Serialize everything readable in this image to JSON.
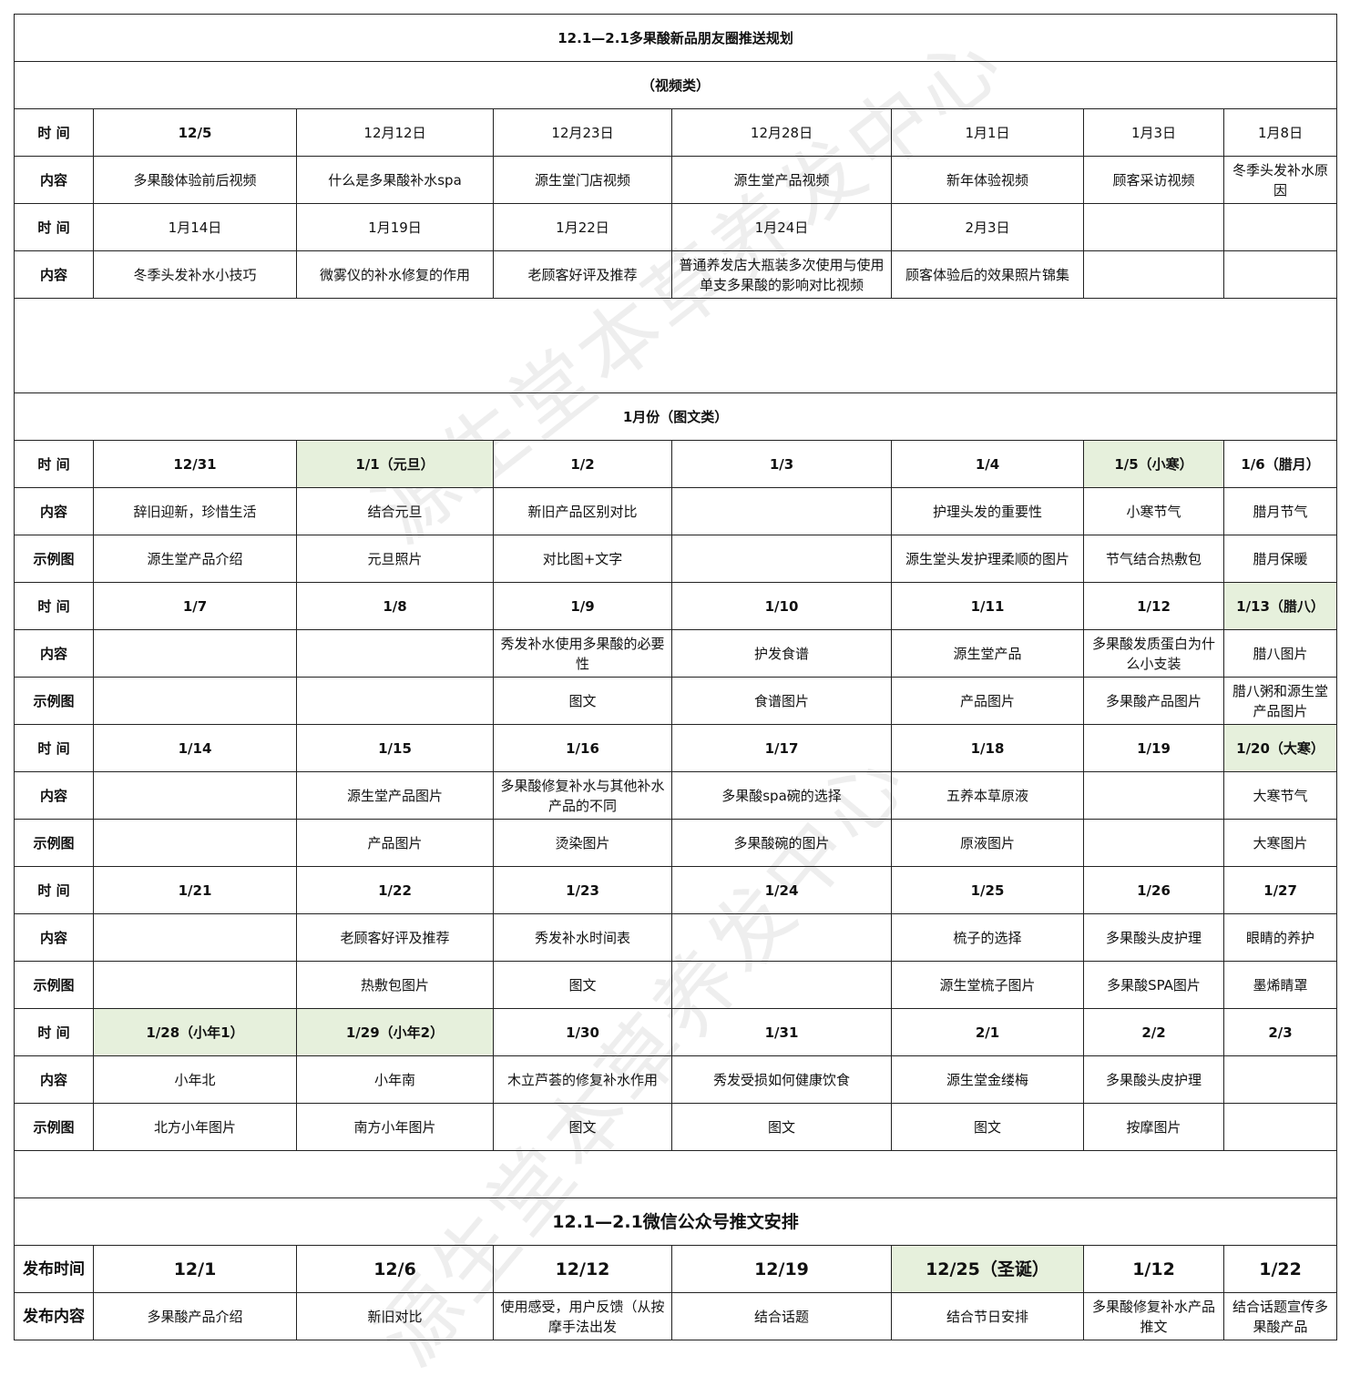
{
  "watermark": "源生堂本草养发中心",
  "highlight_color": "#e6f0dc",
  "title": "12.1—2.1多果酸新品朋友圈推送规划",
  "video": {
    "heading": "（视频类）",
    "rows": [
      {
        "label": "时 间",
        "type": "time",
        "cells": [
          "12/5",
          "12月12日",
          "12月23日",
          "12月28日",
          "1月1日",
          "1月3日",
          "1月8日"
        ],
        "bold_cells": [
          0
        ]
      },
      {
        "label": "内容",
        "type": "content",
        "cells": [
          "多果酸体验前后视频",
          "什么是多果酸补水spa",
          "源生堂门店视频",
          "源生堂产品视频",
          "新年体验视频",
          "顾客采访视频",
          "冬季头发补水原因"
        ]
      },
      {
        "label": "时 间",
        "type": "time",
        "cells": [
          "1月14日",
          "1月19日",
          "1月22日",
          "1月24日",
          "2月3日",
          "",
          ""
        ]
      },
      {
        "label": "内容",
        "type": "content",
        "cells": [
          "冬季头发补水小技巧",
          "微雾仪的补水修复的作用",
          "老顾客好评及推荐",
          "普通养发店大瓶装多次使用与使用单支多果酸的影响对比视频",
          "顾客体验后的效果照片锦集",
          "",
          ""
        ]
      }
    ]
  },
  "graphic": {
    "heading": "1月份（图文类）",
    "rows": [
      {
        "label": "时 间",
        "type": "time",
        "cells": [
          "12/31",
          "1/1（元旦）",
          "1/2",
          "1/3",
          "1/4",
          "1/5（小寒）",
          "1/6（腊月）"
        ],
        "highlight": [
          1,
          5
        ]
      },
      {
        "label": "内容",
        "type": "content",
        "cells": [
          "辞旧迎新，珍惜生活",
          "结合元旦",
          "新旧产品区别对比",
          "",
          "护理头发的重要性",
          "小寒节气",
          "腊月节气"
        ]
      },
      {
        "label": "示例图",
        "type": "example",
        "cells": [
          "源生堂产品介绍",
          "元旦照片",
          "对比图+文字",
          "",
          "源生堂头发护理柔顺的图片",
          "节气结合热敷包",
          "腊月保暖"
        ]
      },
      {
        "label": "时 间",
        "type": "time",
        "cells": [
          "1/7",
          "1/8",
          "1/9",
          "1/10",
          "1/11",
          "1/12",
          "1/13（腊八）"
        ],
        "highlight": [
          6
        ]
      },
      {
        "label": "内容",
        "type": "content",
        "cells": [
          "",
          "",
          "秀发补水使用多果酸的必要性",
          "护发食谱",
          "源生堂产品",
          "多果酸发质蛋白为什么小支装",
          "腊八图片"
        ]
      },
      {
        "label": "示例图",
        "type": "example",
        "cells": [
          "",
          "",
          "图文",
          "食谱图片",
          "产品图片",
          "多果酸产品图片",
          "腊八粥和源生堂产品图片"
        ]
      },
      {
        "label": "时 间",
        "type": "time",
        "cells": [
          "1/14",
          "1/15",
          "1/16",
          "1/17",
          "1/18",
          "1/19",
          "1/20（大寒）"
        ],
        "highlight": [
          6
        ]
      },
      {
        "label": "内容",
        "type": "content",
        "cells": [
          "",
          "源生堂产品图片",
          "多果酸修复补水与其他补水产品的不同",
          "多果酸spa碗的选择",
          "五养本草原液",
          "",
          "大寒节气"
        ]
      },
      {
        "label": "示例图",
        "type": "example",
        "cells": [
          "",
          "产品图片",
          "烫染图片",
          "多果酸碗的图片",
          "原液图片",
          "",
          "大寒图片"
        ]
      },
      {
        "label": "时 间",
        "type": "time",
        "cells": [
          "1/21",
          "1/22",
          "1/23",
          "1/24",
          "1/25",
          "1/26",
          "1/27"
        ]
      },
      {
        "label": "内容",
        "type": "content",
        "cells": [
          "",
          "老顾客好评及推荐",
          "秀发补水时间表",
          "",
          "梳子的选择",
          "多果酸头皮护理",
          "眼睛的养护"
        ]
      },
      {
        "label": "示例图",
        "type": "example",
        "cells": [
          "",
          "热敷包图片",
          "图文",
          "",
          "源生堂梳子图片",
          "多果酸SPA图片",
          "墨烯睛罩"
        ]
      },
      {
        "label": "时 间",
        "type": "time",
        "cells": [
          "1/28（小年1）",
          "1/29（小年2）",
          "1/30",
          "1/31",
          "2/1",
          "2/2",
          "2/3"
        ],
        "highlight": [
          0,
          1
        ]
      },
      {
        "label": "内容",
        "type": "content",
        "cells": [
          "小年北",
          "小年南",
          "木立芦荟的修复补水作用",
          "秀发受损如何健康饮食",
          "源生堂金缕梅",
          "多果酸头皮护理",
          ""
        ]
      },
      {
        "label": "示例图",
        "type": "example",
        "cells": [
          "北方小年图片",
          "南方小年图片",
          "图文",
          "图文",
          "图文",
          "按摩图片",
          ""
        ]
      }
    ]
  },
  "wechat": {
    "title": "12.1—2.1微信公众号推文安排",
    "rows": [
      {
        "label": "发布时间",
        "type": "time",
        "cells": [
          "12/1",
          "12/6",
          "12/12",
          "12/19",
          "12/25（圣诞）",
          "1/12",
          "1/22"
        ],
        "highlight": [
          4
        ]
      },
      {
        "label": "发布内容",
        "type": "content",
        "cells": [
          "多果酸产品介绍",
          "新旧对比",
          "使用感受，用户反馈（从按摩手法出发",
          "结合话题",
          "结合节日安排",
          "多果酸修复补水产品推文",
          "结合话题宣传多果酸产品"
        ]
      }
    ]
  }
}
